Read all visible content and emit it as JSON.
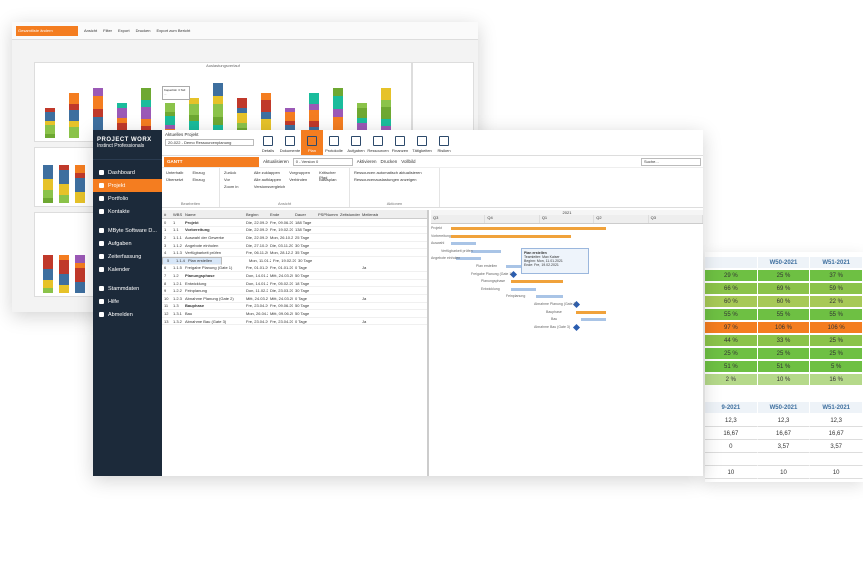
{
  "back_window": {
    "selector": "Gesamtliste ändern",
    "toolbar": [
      "Ansicht",
      "Filter",
      "Export",
      "Drucken",
      "Export zum Bericht"
    ],
    "chart_title": "Auslastungsverlauf",
    "tooltip": "Kapazität: 3 Std: ..."
  },
  "main_window": {
    "sidebar": {
      "logo": "PROJECT WORX",
      "logo_sub": "Instinct Professionals",
      "items": [
        {
          "label": "Dashboard",
          "icon": "dashboard-icon",
          "active": false
        },
        {
          "label": "Projekt",
          "icon": "folder-icon",
          "active": true
        },
        {
          "label": "Portfolio",
          "icon": "portfolio-icon",
          "active": false
        },
        {
          "label": "Kontakte",
          "icon": "contacts-icon",
          "active": false
        },
        {
          "label": "MByte Software D...",
          "icon": "company-icon",
          "active": false
        },
        {
          "label": "Aufgaben",
          "icon": "tasks-icon",
          "active": false
        },
        {
          "label": "Zeiterfassung",
          "icon": "clock-icon",
          "active": false
        },
        {
          "label": "Kalender",
          "icon": "calendar-icon",
          "active": false
        },
        {
          "label": "Stammdaten",
          "icon": "settings-icon",
          "active": false
        },
        {
          "label": "Hilfe",
          "icon": "help-icon",
          "active": false
        },
        {
          "label": "Abmelden",
          "icon": "logout-icon",
          "active": false
        }
      ]
    },
    "project": {
      "label": "Aktuelles Projekt",
      "value": "20-022 - Demo Ressourcenplanung"
    },
    "ribbon_buttons": [
      {
        "label": "Details"
      },
      {
        "label": "Dokumente"
      },
      {
        "label": "Plan",
        "active": true
      },
      {
        "label": "Protokolle"
      },
      {
        "label": "Aufgaben"
      },
      {
        "label": "Ressourcen"
      },
      {
        "label": "Finanzen"
      },
      {
        "label": "Tätigkeiten"
      },
      {
        "label": "Risiken"
      }
    ],
    "tab": "GANTT",
    "version": "0 - Version 0",
    "refresh": "Aktualisieren",
    "actions": [
      "Aktivieren",
      "Drucken",
      "Vollbild"
    ],
    "search_placeholder": "Suche...",
    "tools": {
      "bearbeiten": [
        "Unterhalb",
        "Einzug",
        "Übersetzt",
        "Einzug"
      ],
      "ansicht": [
        "Zurück",
        "Alle zuklappen",
        "Vorgruppen",
        "Kritischer Pfad",
        "Vor",
        "Alle aufklappen",
        "Verbinden",
        "Basisplan",
        "Zoom in",
        "Versionsvergleich"
      ],
      "aktionen": [
        "Ressourcen automatisch aktualisieren",
        "Ressourcenauslastungen anzeigen"
      ],
      "group_names": [
        "Bearbeiten",
        "Ansicht",
        "Aktionen"
      ]
    },
    "grid": {
      "headers": [
        "#",
        "WBS",
        "Name",
        "Beginn",
        "Ende",
        "Dauer",
        "PSPNummer",
        "Zeitstunden",
        "Meilenstein"
      ],
      "rows": [
        [
          "0",
          "1",
          "Projekt",
          "Die, 22.09.2020",
          "Fre, 09.06.2021",
          "188 Tage",
          "",
          "",
          ""
        ],
        [
          "1",
          "1.1",
          "Vorbereitung",
          "Die, 22.09.2020",
          "Fre, 19.02.2021",
          "138 Tage",
          "",
          "",
          ""
        ],
        [
          "2",
          "1.1.1",
          "Auswahl der Gewerke",
          "Die, 22.09.2020",
          "Mon, 26.10.2020",
          "25 Tage",
          "",
          "",
          ""
        ],
        [
          "3",
          "1.1.2",
          "Angebote einholen",
          "Die, 27.10.2020",
          "Die, 03.11.2020",
          "30 Tage",
          "",
          "",
          ""
        ],
        [
          "4",
          "1.1.3",
          "Verfügbarkeit prüfen",
          "Fre, 06.11.2020",
          "Mon, 28.12.2020",
          "35 Tage",
          "",
          "",
          ""
        ],
        [
          "5",
          "1.1.4",
          "Plan erstellen",
          "Mon, 11.01.2021",
          "Fre, 19.02.2021",
          "30 Tage",
          "",
          "",
          ""
        ],
        [
          "6",
          "1.1.5",
          "Freigabe Planung (Gate 1)",
          "Fre, 01.01.2021",
          "Fre, 01.01.2021",
          "0 Tage",
          "",
          "",
          "Ja"
        ],
        [
          "7",
          "1.2",
          "Planungsphase",
          "Don, 14.01.2021",
          "Mitt, 24.03.2021",
          "50 Tage",
          "",
          "",
          ""
        ],
        [
          "8",
          "1.2.1",
          "Entwicklung",
          "Don, 14.01.2021",
          "Fre, 05.02.2021",
          "18 Tage",
          "",
          "",
          ""
        ],
        [
          "9",
          "1.2.2",
          "Feinplanung",
          "Don, 11.02.2021",
          "Die, 23.03.2021",
          "30 Tage",
          "",
          "",
          ""
        ],
        [
          "10",
          "1.2.3",
          "Abnahme Planung (Gate 2)",
          "Mitt, 24.03.2021",
          "Mitt, 24.03.2021",
          "0 Tage",
          "",
          "",
          "Ja"
        ],
        [
          "11",
          "1.3",
          "Bauphase",
          "Fre, 23.04.2021",
          "Fre, 09.06.2021",
          "50 Tage",
          "",
          "",
          ""
        ],
        [
          "12",
          "1.3.1",
          "Bau",
          "Mon, 26.04.2021",
          "Mitt, 09.06.2021",
          "50 Tage",
          "",
          "",
          ""
        ],
        [
          "13",
          "1.3.2",
          "Abnahme Bau (Gate 3)",
          "Fre, 23.04.2021",
          "Fre, 23.04.2021",
          "0 Tage",
          "",
          "",
          "Ja"
        ]
      ]
    },
    "gantt": {
      "year": "2021",
      "quarters": [
        "Q3",
        "Q4",
        "Q1",
        "Q2",
        "Q3"
      ],
      "labels": [
        "Projekt",
        "Vorbereitung",
        "Auswahl",
        "Verfügbarkeit prüfen",
        "Angebote einholen",
        "Plan erstellen",
        "Freigabe Planung (Gate 1)",
        "Planungsphase",
        "Entwicklung",
        "Feinplanung",
        "Abnahme Planung (Gate 2)",
        "Bauphase",
        "Bau",
        "Abnahme Bau (Gate 3)"
      ],
      "tooltip": {
        "title": "Plan erstellen",
        "lines": [
          "Teamleiter: Max Kaiser",
          "Beginn: Mon, 11.01.2021",
          "Ende: Fre, 19.02.2021"
        ]
      }
    }
  },
  "right_window": {
    "table1": {
      "headers": [
        "",
        "W50-2021",
        "W51-2021"
      ],
      "rows": [
        [
          "29 %",
          "25 %",
          "37 %"
        ],
        [
          "66 %",
          "69 %",
          "59 %"
        ],
        [
          "60 %",
          "60 %",
          "22 %"
        ],
        [
          "55 %",
          "55 %",
          "55 %"
        ],
        [
          "97 %",
          "106 %",
          "106 %"
        ],
        [
          "44 %",
          "33 %",
          "25 %"
        ],
        [
          "25 %",
          "25 %",
          "25 %"
        ],
        [
          "51 %",
          "51 %",
          "5 %"
        ],
        [
          "2 %",
          "10 %",
          "16 %"
        ]
      ],
      "row_colors": [
        "#6ec043",
        "#8bc34a",
        "#a7c957",
        "#6ec043",
        "#f47d20",
        "#8bc34a",
        "#6ec043",
        "#6ec043",
        "#b5d98a"
      ]
    },
    "table2": {
      "headers": [
        "9-2021",
        "W50-2021",
        "W51-2021"
      ],
      "rows": [
        [
          "12,3",
          "12,3",
          "12,3"
        ],
        [
          "16,67",
          "16,67",
          "16,67"
        ],
        [
          "0",
          "3,57",
          "3,57"
        ],
        [
          "",
          "",
          " "
        ],
        [
          "10",
          "10",
          "10"
        ]
      ]
    }
  },
  "colors": {
    "accent": "#f47d20",
    "sidebar": "#1c2a3a",
    "gantt_bar": "#f0a23b",
    "link": "#3e6f9f"
  }
}
